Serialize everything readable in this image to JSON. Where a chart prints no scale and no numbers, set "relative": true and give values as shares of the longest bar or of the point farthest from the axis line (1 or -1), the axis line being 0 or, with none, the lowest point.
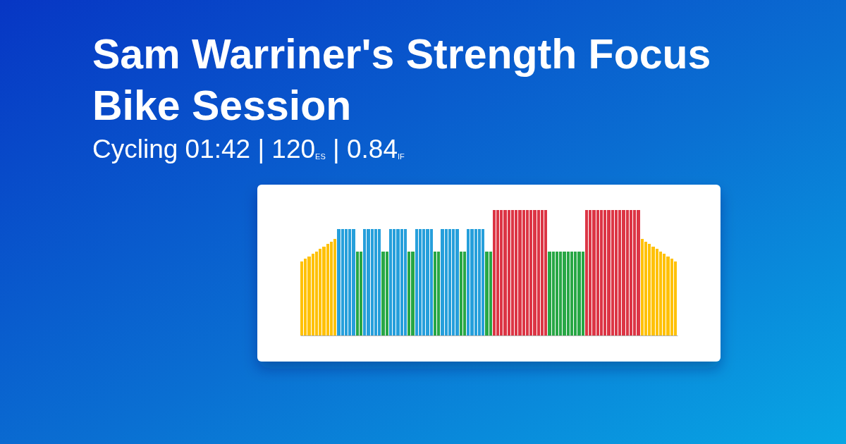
{
  "chart_data": {
    "type": "bar",
    "title": "Sam Warriner's Strength Focus Bike Session",
    "subtitle": "Cycling 01:42 | 120$_{ES}$ | 0.84$_{IF}$",
    "relative": true,
    "categories": [
      null,
      null,
      null,
      null,
      null,
      null,
      null,
      null,
      null,
      null,
      null,
      null,
      null,
      null,
      null,
      null,
      null,
      null,
      null,
      null,
      null,
      null,
      null,
      null,
      null,
      null,
      null,
      null,
      null,
      null,
      null,
      null,
      null,
      null,
      null,
      null,
      null,
      null,
      null,
      null,
      null,
      null,
      null,
      null,
      null,
      null,
      null,
      null,
      null,
      null,
      null,
      null,
      null,
      null,
      null,
      null,
      null,
      null,
      null,
      null,
      null,
      null,
      null,
      null,
      null,
      null,
      null,
      null,
      null,
      null,
      null,
      null,
      null,
      null,
      null,
      null,
      null,
      null,
      null,
      null,
      null,
      null,
      null,
      null,
      null,
      null,
      null,
      null,
      null,
      null,
      null,
      null,
      null,
      null,
      null,
      null,
      null,
      null,
      null,
      null,
      null,
      null
    ],
    "values": [
      0.59,
      0.61,
      0.63,
      0.65,
      0.67,
      0.69,
      0.71,
      0.73,
      0.75,
      0.77,
      0.85,
      0.85,
      0.85,
      0.85,
      0.85,
      0.67,
      0.67,
      0.85,
      0.85,
      0.85,
      0.85,
      0.85,
      0.67,
      0.67,
      0.85,
      0.85,
      0.85,
      0.85,
      0.85,
      0.67,
      0.67,
      0.85,
      0.85,
      0.85,
      0.85,
      0.85,
      0.67,
      0.67,
      0.85,
      0.85,
      0.85,
      0.85,
      0.85,
      0.67,
      0.67,
      0.85,
      0.85,
      0.85,
      0.85,
      0.85,
      0.67,
      0.67,
      1,
      1,
      1,
      1,
      1,
      1,
      1,
      1,
      1,
      1,
      1,
      1,
      1,
      1,
      1,
      0.67,
      0.67,
      0.67,
      0.67,
      0.67,
      0.67,
      0.67,
      0.67,
      0.67,
      0.67,
      1,
      1,
      1,
      1,
      1,
      1,
      1,
      1,
      1,
      1,
      1,
      1,
      1,
      1,
      1,
      0.77,
      0.75,
      0.73,
      0.71,
      0.69,
      0.67,
      0.65,
      0.63,
      0.61,
      0.59
    ],
    "colors": [
      "#ffc107",
      "#ffc107",
      "#ffc107",
      "#ffc107",
      "#ffc107",
      "#ffc107",
      "#ffc107",
      "#ffc107",
      "#ffc107",
      "#ffc107",
      "#269fdb",
      "#269fdb",
      "#269fdb",
      "#269fdb",
      "#269fdb",
      "#28a745",
      "#28a745",
      "#269fdb",
      "#269fdb",
      "#269fdb",
      "#269fdb",
      "#269fdb",
      "#28a745",
      "#28a745",
      "#269fdb",
      "#269fdb",
      "#269fdb",
      "#269fdb",
      "#269fdb",
      "#28a745",
      "#28a745",
      "#269fdb",
      "#269fdb",
      "#269fdb",
      "#269fdb",
      "#269fdb",
      "#28a745",
      "#28a745",
      "#269fdb",
      "#269fdb",
      "#269fdb",
      "#269fdb",
      "#269fdb",
      "#28a745",
      "#28a745",
      "#269fdb",
      "#269fdb",
      "#269fdb",
      "#269fdb",
      "#269fdb",
      "#28a745",
      "#28a745",
      "#dc3545",
      "#dc3545",
      "#dc3545",
      "#dc3545",
      "#dc3545",
      "#dc3545",
      "#dc3545",
      "#dc3545",
      "#dc3545",
      "#dc3545",
      "#dc3545",
      "#dc3545",
      "#dc3545",
      "#dc3545",
      "#dc3545",
      "#28a745",
      "#28a745",
      "#28a745",
      "#28a745",
      "#28a745",
      "#28a745",
      "#28a745",
      "#28a745",
      "#28a745",
      "#28a745",
      "#dc3545",
      "#dc3545",
      "#dc3545",
      "#dc3545",
      "#dc3545",
      "#dc3545",
      "#dc3545",
      "#dc3545",
      "#dc3545",
      "#dc3545",
      "#dc3545",
      "#dc3545",
      "#dc3545",
      "#dc3545",
      "#dc3545",
      "#ffc107",
      "#ffc107",
      "#ffc107",
      "#ffc107",
      "#ffc107",
      "#ffc107",
      "#ffc107",
      "#ffc107",
      "#ffc107",
      "#ffc107"
    ]
  }
}
